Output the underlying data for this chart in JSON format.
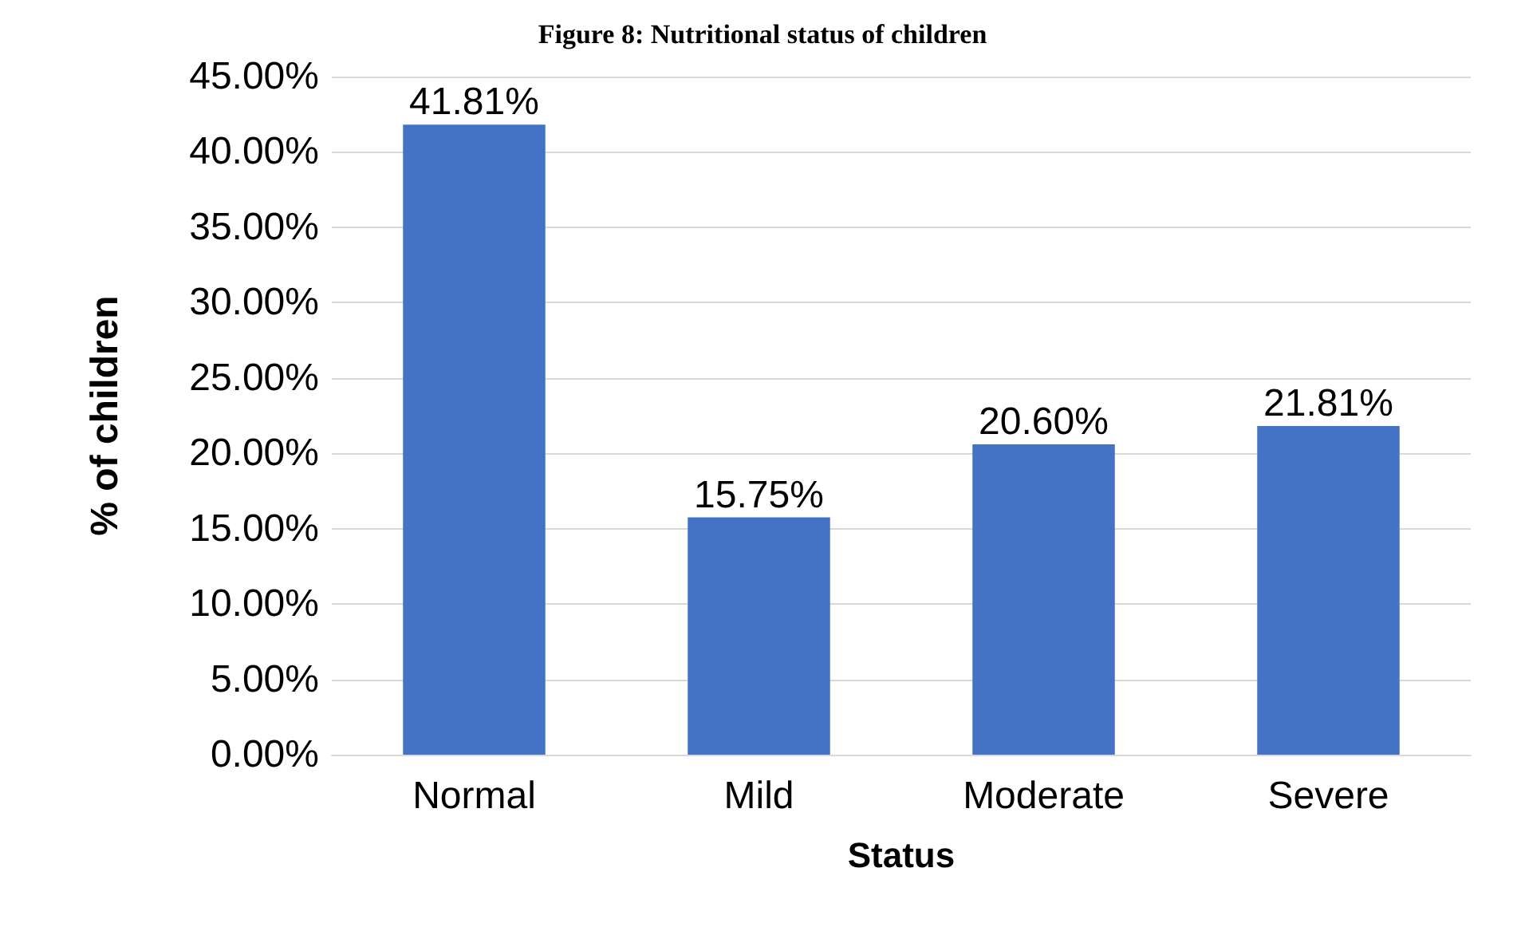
{
  "chart_data": {
    "type": "bar",
    "title": "Figure 8: Nutritional status of children",
    "xlabel": "Status",
    "ylabel": "% of children",
    "categories": [
      "Normal",
      "Mild",
      "Moderate",
      "Severe"
    ],
    "values": [
      41.81,
      15.75,
      20.6,
      21.81
    ],
    "value_labels": [
      "41.81%",
      "15.75%",
      "20.60%",
      "21.81%"
    ],
    "color": "#4472c4",
    "ylim": [
      0,
      45
    ],
    "yticks": [
      {
        "value": 0,
        "label": "0.00%"
      },
      {
        "value": 5,
        "label": "5.00%"
      },
      {
        "value": 10,
        "label": "10.00%"
      },
      {
        "value": 15,
        "label": "15.00%"
      },
      {
        "value": 20,
        "label": "20.00%"
      },
      {
        "value": 25,
        "label": "25.00%"
      },
      {
        "value": 30,
        "label": "30.00%"
      },
      {
        "value": 35,
        "label": "35.00%"
      },
      {
        "value": 40,
        "label": "40.00%"
      },
      {
        "value": 45,
        "label": "45.00%"
      }
    ],
    "grid": "y"
  }
}
